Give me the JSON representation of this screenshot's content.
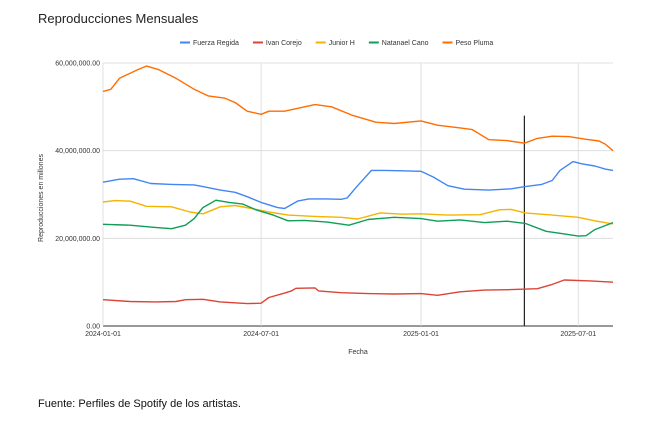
{
  "chart_data": {
    "type": "line",
    "title": "Reproducciones Mensuales",
    "xlabel": "Fecha",
    "ylabel": "Reproducciones en millones",
    "ylim": [
      0,
      60000000
    ],
    "xlim": [
      "2024-01-01",
      "2025-08-10"
    ],
    "y_ticks": [
      0,
      20000000,
      40000000,
      60000000
    ],
    "y_tick_labels": [
      "0.00",
      "20,000,000.00",
      "40,000,000.00",
      "60,000,000.00"
    ],
    "x_ticks": [
      "2024-01-01",
      "2024-07-01",
      "2025-01-01",
      "2025-07-01"
    ],
    "x_tick_labels": [
      "2024-01-01",
      "2024-07-01",
      "2025-01-01",
      "2025-07-01"
    ],
    "grid": true,
    "legend_position": "top",
    "vertical_marker": "2025-04-30",
    "series": [
      {
        "name": "Fuerza Regida",
        "color": "#4285f4",
        "points": [
          [
            "2024-01-01",
            32800000
          ],
          [
            "2024-01-20",
            33500000
          ],
          [
            "2024-02-05",
            33600000
          ],
          [
            "2024-02-25",
            32500000
          ],
          [
            "2024-03-20",
            32300000
          ],
          [
            "2024-04-15",
            32200000
          ],
          [
            "2024-04-25",
            31800000
          ],
          [
            "2024-05-15",
            31000000
          ],
          [
            "2024-06-01",
            30500000
          ],
          [
            "2024-06-15",
            29500000
          ],
          [
            "2024-07-01",
            28200000
          ],
          [
            "2024-07-20",
            27000000
          ],
          [
            "2024-07-28",
            26800000
          ],
          [
            "2024-08-12",
            28500000
          ],
          [
            "2024-08-25",
            29000000
          ],
          [
            "2024-09-15",
            29000000
          ],
          [
            "2024-10-01",
            28900000
          ],
          [
            "2024-10-08",
            29200000
          ],
          [
            "2024-10-20",
            32000000
          ],
          [
            "2024-11-05",
            35500000
          ],
          [
            "2024-11-20",
            35500000
          ],
          [
            "2024-12-10",
            35400000
          ],
          [
            "2025-01-01",
            35300000
          ],
          [
            "2025-01-15",
            34000000
          ],
          [
            "2025-02-01",
            32000000
          ],
          [
            "2025-02-20",
            31200000
          ],
          [
            "2025-03-20",
            31000000
          ],
          [
            "2025-04-15",
            31300000
          ],
          [
            "2025-05-01",
            31800000
          ],
          [
            "2025-05-20",
            32300000
          ],
          [
            "2025-06-01",
            33200000
          ],
          [
            "2025-06-10",
            35500000
          ],
          [
            "2025-06-25",
            37500000
          ],
          [
            "2025-07-05",
            37000000
          ],
          [
            "2025-07-20",
            36500000
          ],
          [
            "2025-08-01",
            35800000
          ],
          [
            "2025-08-10",
            35500000
          ]
        ]
      },
      {
        "name": "Ivan Corejo",
        "color": "#db4437",
        "points": [
          [
            "2024-01-01",
            6000000
          ],
          [
            "2024-02-01",
            5600000
          ],
          [
            "2024-03-01",
            5500000
          ],
          [
            "2024-03-25",
            5600000
          ],
          [
            "2024-04-05",
            6000000
          ],
          [
            "2024-04-25",
            6100000
          ],
          [
            "2024-05-15",
            5500000
          ],
          [
            "2024-06-15",
            5100000
          ],
          [
            "2024-07-01",
            5200000
          ],
          [
            "2024-07-10",
            6500000
          ],
          [
            "2024-07-28",
            7500000
          ],
          [
            "2024-08-05",
            8000000
          ],
          [
            "2024-08-10",
            8600000
          ],
          [
            "2024-09-01",
            8700000
          ],
          [
            "2024-09-05",
            8000000
          ],
          [
            "2024-10-01",
            7600000
          ],
          [
            "2024-11-01",
            7400000
          ],
          [
            "2024-12-01",
            7300000
          ],
          [
            "2025-01-01",
            7400000
          ],
          [
            "2025-01-20",
            7000000
          ],
          [
            "2025-02-15",
            7800000
          ],
          [
            "2025-03-15",
            8200000
          ],
          [
            "2025-04-15",
            8300000
          ],
          [
            "2025-05-15",
            8500000
          ],
          [
            "2025-06-01",
            9500000
          ],
          [
            "2025-06-15",
            10500000
          ],
          [
            "2025-07-15",
            10300000
          ],
          [
            "2025-08-10",
            10000000
          ]
        ]
      },
      {
        "name": "Junior H",
        "color": "#f4b400",
        "points": [
          [
            "2024-01-01",
            28300000
          ],
          [
            "2024-01-15",
            28600000
          ],
          [
            "2024-02-01",
            28500000
          ],
          [
            "2024-02-20",
            27300000
          ],
          [
            "2024-03-20",
            27200000
          ],
          [
            "2024-04-10",
            26000000
          ],
          [
            "2024-04-25",
            25600000
          ],
          [
            "2024-05-15",
            27200000
          ],
          [
            "2024-06-01",
            27500000
          ],
          [
            "2024-06-20",
            26800000
          ],
          [
            "2024-07-10",
            26000000
          ],
          [
            "2024-08-01",
            25300000
          ],
          [
            "2024-09-01",
            25000000
          ],
          [
            "2024-10-01",
            24800000
          ],
          [
            "2024-10-20",
            24400000
          ],
          [
            "2024-11-15",
            25800000
          ],
          [
            "2024-12-10",
            25500000
          ],
          [
            "2025-01-01",
            25600000
          ],
          [
            "2025-02-01",
            25300000
          ],
          [
            "2025-03-10",
            25400000
          ],
          [
            "2025-04-01",
            26500000
          ],
          [
            "2025-04-15",
            26600000
          ],
          [
            "2025-05-01",
            25800000
          ],
          [
            "2025-06-01",
            25300000
          ],
          [
            "2025-07-01",
            24800000
          ],
          [
            "2025-07-20",
            24000000
          ],
          [
            "2025-08-10",
            23300000
          ]
        ]
      },
      {
        "name": "Natanael Cano",
        "color": "#0f9d58",
        "points": [
          [
            "2024-01-01",
            23200000
          ],
          [
            "2024-02-01",
            23000000
          ],
          [
            "2024-03-01",
            22500000
          ],
          [
            "2024-03-20",
            22200000
          ],
          [
            "2024-04-05",
            23000000
          ],
          [
            "2024-04-15",
            24500000
          ],
          [
            "2024-04-25",
            27000000
          ],
          [
            "2024-05-10",
            28700000
          ],
          [
            "2024-05-25",
            28200000
          ],
          [
            "2024-06-10",
            27800000
          ],
          [
            "2024-06-25",
            26500000
          ],
          [
            "2024-07-15",
            25300000
          ],
          [
            "2024-08-01",
            24000000
          ],
          [
            "2024-08-20",
            24100000
          ],
          [
            "2024-09-15",
            23700000
          ],
          [
            "2024-10-10",
            23000000
          ],
          [
            "2024-11-01",
            24300000
          ],
          [
            "2024-12-01",
            24800000
          ],
          [
            "2025-01-01",
            24500000
          ],
          [
            "2025-01-20",
            23900000
          ],
          [
            "2025-02-15",
            24200000
          ],
          [
            "2025-03-15",
            23600000
          ],
          [
            "2025-04-10",
            23900000
          ],
          [
            "2025-05-01",
            23400000
          ],
          [
            "2025-05-25",
            21600000
          ],
          [
            "2025-06-15",
            21000000
          ],
          [
            "2025-07-01",
            20500000
          ],
          [
            "2025-07-10",
            20600000
          ],
          [
            "2025-07-20",
            22000000
          ],
          [
            "2025-08-10",
            23600000
          ]
        ]
      },
      {
        "name": "Peso Pluma",
        "color": "#ff6d01",
        "points": [
          [
            "2024-01-01",
            53500000
          ],
          [
            "2024-01-10",
            54000000
          ],
          [
            "2024-01-20",
            56500000
          ],
          [
            "2024-02-10",
            58500000
          ],
          [
            "2024-02-20",
            59300000
          ],
          [
            "2024-03-05",
            58500000
          ],
          [
            "2024-03-25",
            56500000
          ],
          [
            "2024-04-15",
            54000000
          ],
          [
            "2024-05-01",
            52500000
          ],
          [
            "2024-05-20",
            52000000
          ],
          [
            "2024-06-01",
            51000000
          ],
          [
            "2024-06-15",
            49000000
          ],
          [
            "2024-07-01",
            48300000
          ],
          [
            "2024-07-10",
            49000000
          ],
          [
            "2024-07-28",
            49000000
          ],
          [
            "2024-08-20",
            50000000
          ],
          [
            "2024-09-01",
            50500000
          ],
          [
            "2024-09-20",
            50000000
          ],
          [
            "2024-10-15",
            48000000
          ],
          [
            "2024-11-10",
            46500000
          ],
          [
            "2024-12-01",
            46200000
          ],
          [
            "2025-01-01",
            46800000
          ],
          [
            "2025-01-20",
            45800000
          ],
          [
            "2025-02-15",
            45200000
          ],
          [
            "2025-03-01",
            44800000
          ],
          [
            "2025-03-20",
            42500000
          ],
          [
            "2025-04-10",
            42300000
          ],
          [
            "2025-04-30",
            41700000
          ],
          [
            "2025-05-15",
            42800000
          ],
          [
            "2025-06-01",
            43300000
          ],
          [
            "2025-06-20",
            43200000
          ],
          [
            "2025-07-10",
            42600000
          ],
          [
            "2025-07-25",
            42200000
          ],
          [
            "2025-08-01",
            41500000
          ],
          [
            "2025-08-10",
            40000000
          ]
        ]
      }
    ]
  },
  "footer": {
    "source": "Fuente: Perfiles de Spotify de los artistas."
  }
}
